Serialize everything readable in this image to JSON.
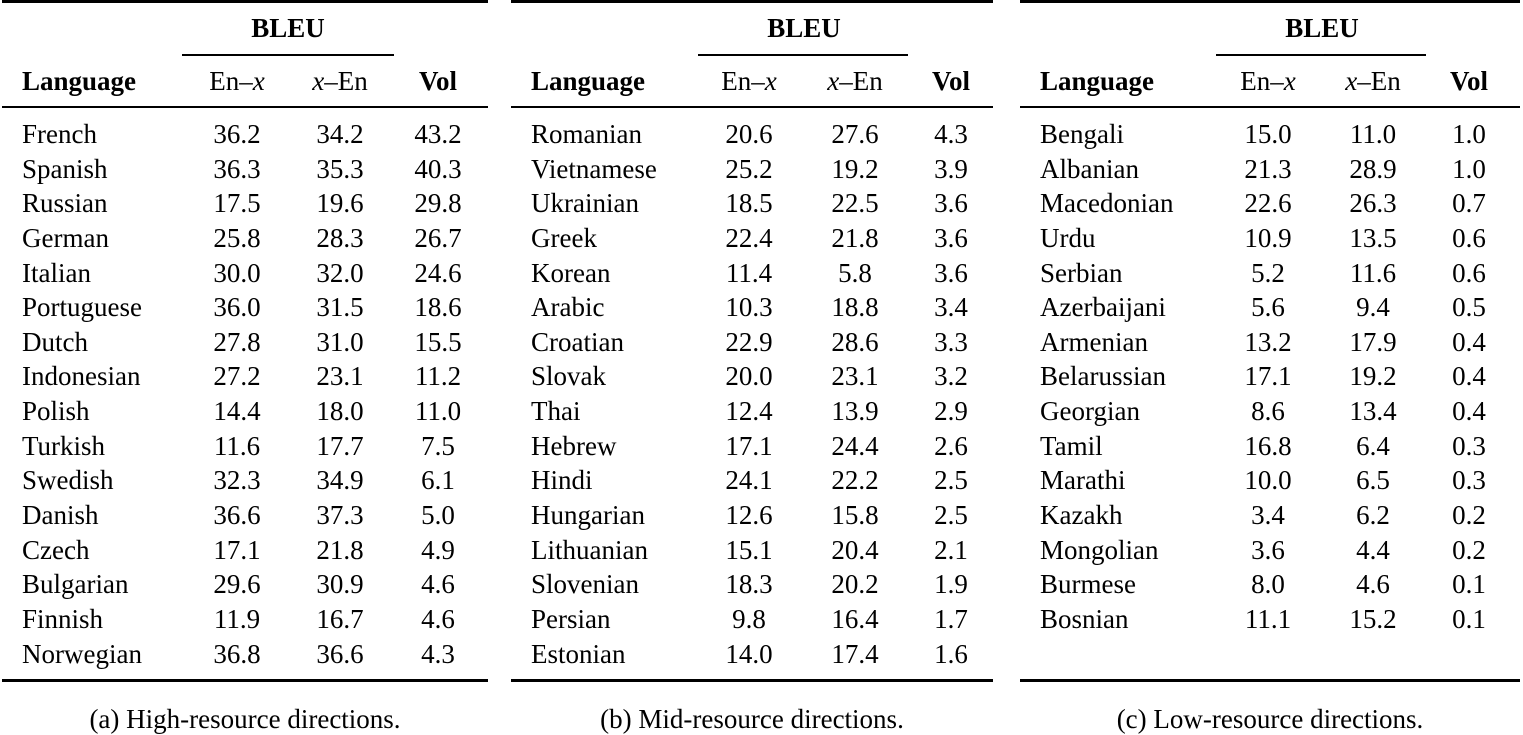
{
  "headers": {
    "bleu": "BLEU",
    "language": "Language",
    "en_x_prefix": "En–",
    "en_x_var": "x",
    "x_en_var": "x",
    "x_en_suffix": "–En",
    "vol": "Vol"
  },
  "panels": [
    {
      "caption": "(a) High-resource directions.",
      "rows": [
        {
          "language": "French",
          "en_x": "36.2",
          "x_en": "34.2",
          "vol": "43.2"
        },
        {
          "language": "Spanish",
          "en_x": "36.3",
          "x_en": "35.3",
          "vol": "40.3"
        },
        {
          "language": "Russian",
          "en_x": "17.5",
          "x_en": "19.6",
          "vol": "29.8"
        },
        {
          "language": "German",
          "en_x": "25.8",
          "x_en": "28.3",
          "vol": "26.7"
        },
        {
          "language": "Italian",
          "en_x": "30.0",
          "x_en": "32.0",
          "vol": "24.6"
        },
        {
          "language": "Portuguese",
          "en_x": "36.0",
          "x_en": "31.5",
          "vol": "18.6"
        },
        {
          "language": "Dutch",
          "en_x": "27.8",
          "x_en": "31.0",
          "vol": "15.5"
        },
        {
          "language": "Indonesian",
          "en_x": "27.2",
          "x_en": "23.1",
          "vol": "11.2"
        },
        {
          "language": "Polish",
          "en_x": "14.4",
          "x_en": "18.0",
          "vol": "11.0"
        },
        {
          "language": "Turkish",
          "en_x": "11.6",
          "x_en": "17.7",
          "vol": "7.5"
        },
        {
          "language": "Swedish",
          "en_x": "32.3",
          "x_en": "34.9",
          "vol": "6.1"
        },
        {
          "language": "Danish",
          "en_x": "36.6",
          "x_en": "37.3",
          "vol": "5.0"
        },
        {
          "language": "Czech",
          "en_x": "17.1",
          "x_en": "21.8",
          "vol": "4.9"
        },
        {
          "language": "Bulgarian",
          "en_x": "29.6",
          "x_en": "30.9",
          "vol": "4.6"
        },
        {
          "language": "Finnish",
          "en_x": "11.9",
          "x_en": "16.7",
          "vol": "4.6"
        },
        {
          "language": "Norwegian",
          "en_x": "36.8",
          "x_en": "36.6",
          "vol": "4.3"
        }
      ]
    },
    {
      "caption": "(b) Mid-resource directions.",
      "rows": [
        {
          "language": "Romanian",
          "en_x": "20.6",
          "x_en": "27.6",
          "vol": "4.3"
        },
        {
          "language": "Vietnamese",
          "en_x": "25.2",
          "x_en": "19.2",
          "vol": "3.9"
        },
        {
          "language": "Ukrainian",
          "en_x": "18.5",
          "x_en": "22.5",
          "vol": "3.6"
        },
        {
          "language": "Greek",
          "en_x": "22.4",
          "x_en": "21.8",
          "vol": "3.6"
        },
        {
          "language": "Korean",
          "en_x": "11.4",
          "x_en": "5.8",
          "vol": "3.6"
        },
        {
          "language": "Arabic",
          "en_x": "10.3",
          "x_en": "18.8",
          "vol": "3.4"
        },
        {
          "language": "Croatian",
          "en_x": "22.9",
          "x_en": "28.6",
          "vol": "3.3"
        },
        {
          "language": "Slovak",
          "en_x": "20.0",
          "x_en": "23.1",
          "vol": "3.2"
        },
        {
          "language": "Thai",
          "en_x": "12.4",
          "x_en": "13.9",
          "vol": "2.9"
        },
        {
          "language": "Hebrew",
          "en_x": "17.1",
          "x_en": "24.4",
          "vol": "2.6"
        },
        {
          "language": "Hindi",
          "en_x": "24.1",
          "x_en": "22.2",
          "vol": "2.5"
        },
        {
          "language": "Hungarian",
          "en_x": "12.6",
          "x_en": "15.8",
          "vol": "2.5"
        },
        {
          "language": "Lithuanian",
          "en_x": "15.1",
          "x_en": "20.4",
          "vol": "2.1"
        },
        {
          "language": "Slovenian",
          "en_x": "18.3",
          "x_en": "20.2",
          "vol": "1.9"
        },
        {
          "language": "Persian",
          "en_x": "9.8",
          "x_en": "16.4",
          "vol": "1.7"
        },
        {
          "language": "Estonian",
          "en_x": "14.0",
          "x_en": "17.4",
          "vol": "1.6"
        }
      ]
    },
    {
      "caption": "(c) Low-resource directions.",
      "rows": [
        {
          "language": "Bengali",
          "en_x": "15.0",
          "x_en": "11.0",
          "vol": "1.0"
        },
        {
          "language": "Albanian",
          "en_x": "21.3",
          "x_en": "28.9",
          "vol": "1.0"
        },
        {
          "language": "Macedonian",
          "en_x": "22.6",
          "x_en": "26.3",
          "vol": "0.7"
        },
        {
          "language": "Urdu",
          "en_x": "10.9",
          "x_en": "13.5",
          "vol": "0.6"
        },
        {
          "language": "Serbian",
          "en_x": "5.2",
          "x_en": "11.6",
          "vol": "0.6"
        },
        {
          "language": "Azerbaijani",
          "en_x": "5.6",
          "x_en": "9.4",
          "vol": "0.5"
        },
        {
          "language": "Armenian",
          "en_x": "13.2",
          "x_en": "17.9",
          "vol": "0.4"
        },
        {
          "language": "Belarussian",
          "en_x": "17.1",
          "x_en": "19.2",
          "vol": "0.4"
        },
        {
          "language": "Georgian",
          "en_x": "8.6",
          "x_en": "13.4",
          "vol": "0.4"
        },
        {
          "language": "Tamil",
          "en_x": "16.8",
          "x_en": "6.4",
          "vol": "0.3"
        },
        {
          "language": "Marathi",
          "en_x": "10.0",
          "x_en": "6.5",
          "vol": "0.3"
        },
        {
          "language": "Kazakh",
          "en_x": "3.4",
          "x_en": "6.2",
          "vol": "0.2"
        },
        {
          "language": "Mongolian",
          "en_x": "3.6",
          "x_en": "4.4",
          "vol": "0.2"
        },
        {
          "language": "Burmese",
          "en_x": "8.0",
          "x_en": "4.6",
          "vol": "0.1"
        },
        {
          "language": "Bosnian",
          "en_x": "11.1",
          "x_en": "15.2",
          "vol": "0.1"
        }
      ]
    }
  ]
}
